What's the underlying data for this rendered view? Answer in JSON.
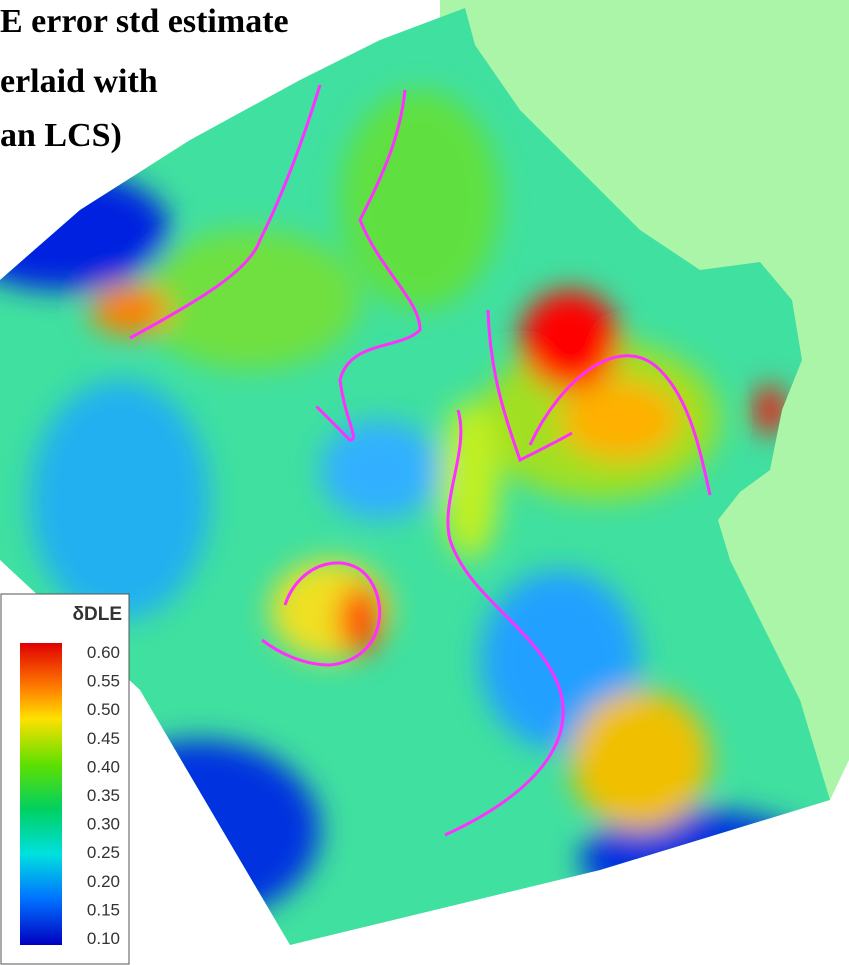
{
  "title": {
    "lines": [
      "E error std estimate",
      "erlaid with",
      "an LCS)"
    ]
  },
  "legend": {
    "title": "δDLE",
    "ticks": [
      "0.60",
      "0.55",
      "0.50",
      "0.45",
      "0.40",
      "0.35",
      "0.30",
      "0.25",
      "0.20",
      "0.15",
      "0.10"
    ]
  }
}
